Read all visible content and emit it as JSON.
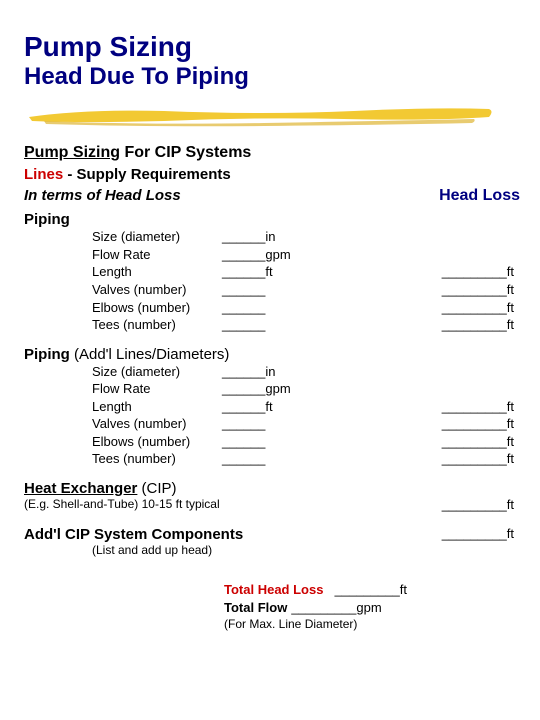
{
  "title": "Pump Sizing",
  "subtitle": "Head Due To Piping",
  "swoosh": {
    "color": "#f2c933",
    "shadow": "#d9a810"
  },
  "cip_heading_underline": "Pump Sizing",
  "cip_heading_rest": " For CIP Systems",
  "lines_red": "Lines",
  "lines_rest": " - Supply Requirements",
  "italic_left": "In terms of Head Loss",
  "italic_right": "Head Loss",
  "piping1": {
    "label": "Piping",
    "rows": [
      {
        "label": "Size (diameter)",
        "mid": "______in",
        "right": ""
      },
      {
        "label": "Flow Rate",
        "mid": "______gpm",
        "right": ""
      },
      {
        "label": "Length",
        "mid": "______ft",
        "right": "_________ft"
      },
      {
        "label": "Valves (number)",
        "mid": "______",
        "right": "_________ft"
      },
      {
        "label": "Elbows (number)",
        "mid": "______",
        "right": "_________ft"
      },
      {
        "label": "Tees (number)",
        "mid": "______",
        "right": "_________ft"
      }
    ]
  },
  "piping2": {
    "label": "Piping",
    "paren": " (Add'l Lines/Diameters)",
    "rows": [
      {
        "label": "Size (diameter)",
        "mid": "______in",
        "right": ""
      },
      {
        "label": "Flow Rate",
        "mid": "______gpm",
        "right": ""
      },
      {
        "label": "Length",
        "mid": "______ft",
        "right": "_________ft"
      },
      {
        "label": "Valves (number)",
        "mid": "______",
        "right": "_________ft"
      },
      {
        "label": "Elbows (number)",
        "mid": "______",
        "right": "_________ft"
      },
      {
        "label": "Tees (number)",
        "mid": "______",
        "right": "_________ft"
      }
    ]
  },
  "heat_exchanger": {
    "label": "Heat Exchanger",
    "paren": " (CIP)",
    "sub_left": "(E.g. Shell-and-Tube)   10-15 ft typical",
    "sub_right": "_________ft"
  },
  "addl": {
    "label": "Add'l CIP System Components",
    "right": "_________ft",
    "sub": "(List and add up head)"
  },
  "totals": {
    "head_label": "Total Head Loss",
    "head_val": "  _________ft",
    "flow_label": "Total Flow ",
    "flow_val": "_________gpm",
    "paren": "(For Max. Line Diameter)"
  }
}
